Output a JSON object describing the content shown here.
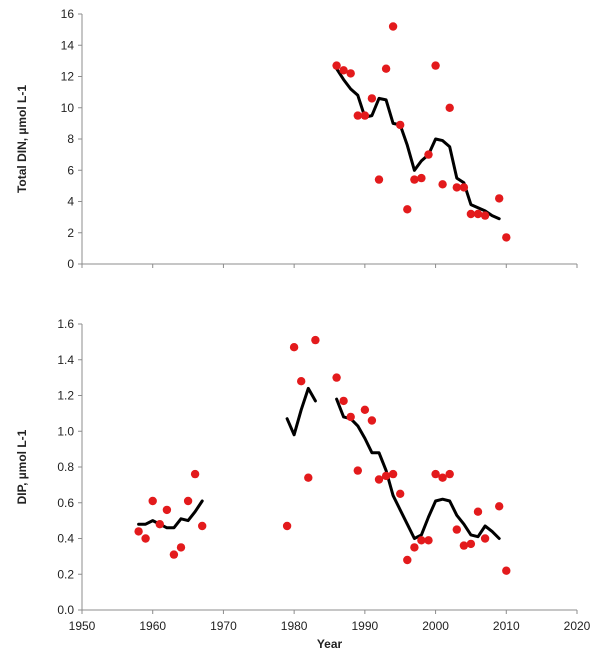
{
  "chart_data": [
    {
      "type": "scatter",
      "ylabel": "Total DIN, µmol L-1",
      "xlabel": "",
      "xlim": [
        1950,
        2020
      ],
      "ylim": [
        0,
        16
      ],
      "y_ticks": [
        "0",
        "2",
        "4",
        "6",
        "8",
        "10",
        "12",
        "14",
        "16"
      ],
      "grid": false,
      "point_color": "#e31a1c",
      "line_color": "#000000",
      "series": [
        {
          "kind": "points",
          "x": [
            1986,
            1987,
            1988,
            1989,
            1990,
            1991,
            1992,
            1993,
            1994,
            1995,
            1996,
            1997,
            1998,
            1999,
            2000,
            2001,
            2002,
            2003,
            2004,
            2005,
            2006,
            2007,
            2009,
            2010
          ],
          "values": [
            12.7,
            12.4,
            12.2,
            9.5,
            9.5,
            10.6,
            5.4,
            12.5,
            15.2,
            8.9,
            3.5,
            5.4,
            5.5,
            7.0,
            12.7,
            5.1,
            10.0,
            4.9,
            4.9,
            3.2,
            3.2,
            3.1,
            4.2,
            1.7
          ]
        },
        {
          "kind": "line",
          "segments": [
            {
              "x": [
                1986,
                1987,
                1988,
                1989,
                1990,
                1991,
                1992,
                1993,
                1994,
                1995,
                1996,
                1997,
                1998,
                1999,
                2000,
                2001,
                2002,
                2003,
                2004,
                2005,
                2006,
                2007,
                2008,
                2009
              ],
              "values": [
                12.5,
                11.8,
                11.2,
                10.8,
                9.4,
                9.5,
                10.6,
                10.5,
                9.0,
                8.9,
                7.6,
                6.0,
                6.6,
                7.0,
                8.0,
                7.9,
                7.5,
                5.5,
                5.2,
                3.8,
                3.6,
                3.4,
                3.1,
                2.9
              ]
            }
          ]
        }
      ]
    },
    {
      "type": "scatter",
      "ylabel": "DIP, µmol L-1",
      "xlabel": "Year",
      "xlim": [
        1950,
        2020
      ],
      "ylim": [
        0,
        1.6
      ],
      "x_ticks": [
        "1950",
        "1960",
        "1970",
        "1980",
        "1990",
        "2000",
        "2010",
        "2020"
      ],
      "y_ticks": [
        "0.0",
        "0.2",
        "0.4",
        "0.6",
        "0.8",
        "1.0",
        "1.2",
        "1.4",
        "1.6"
      ],
      "grid": false,
      "point_color": "#e31a1c",
      "line_color": "#000000",
      "series": [
        {
          "kind": "points",
          "x": [
            1958,
            1959,
            1960,
            1961,
            1962,
            1963,
            1964,
            1965,
            1966,
            1967,
            1979,
            1980,
            1981,
            1982,
            1983,
            1986,
            1987,
            1988,
            1989,
            1990,
            1991,
            1992,
            1993,
            1994,
            1995,
            1996,
            1997,
            1998,
            1999,
            2000,
            2001,
            2002,
            2003,
            2004,
            2005,
            2006,
            2007,
            2009,
            2010
          ],
          "values": [
            0.44,
            0.4,
            0.61,
            0.48,
            0.56,
            0.31,
            0.35,
            0.61,
            0.76,
            0.47,
            0.47,
            1.47,
            1.28,
            0.74,
            1.51,
            1.3,
            1.17,
            1.08,
            0.78,
            1.12,
            1.06,
            0.73,
            0.75,
            0.76,
            0.65,
            0.28,
            0.35,
            0.39,
            0.39,
            0.76,
            0.74,
            0.76,
            0.45,
            0.36,
            0.37,
            0.55,
            0.4,
            0.58,
            0.22
          ]
        },
        {
          "kind": "line",
          "segments": [
            {
              "x": [
                1958,
                1959,
                1960,
                1961,
                1962,
                1963,
                1964,
                1965,
                1966,
                1967
              ],
              "values": [
                0.48,
                0.48,
                0.5,
                0.48,
                0.46,
                0.46,
                0.51,
                0.5,
                0.55,
                0.61
              ]
            },
            {
              "x": [
                1979,
                1980,
                1981,
                1982,
                1983
              ],
              "values": [
                1.07,
                0.98,
                1.12,
                1.24,
                1.17
              ]
            },
            {
              "x": [
                1986,
                1987,
                1988,
                1989,
                1990,
                1991,
                1992,
                1993,
                1994,
                1995,
                1996,
                1997,
                1998,
                1999,
                2000,
                2001,
                2002,
                2003,
                2004,
                2005,
                2006,
                2007,
                2008,
                2009
              ],
              "values": [
                1.18,
                1.08,
                1.07,
                1.03,
                0.96,
                0.88,
                0.88,
                0.78,
                0.64,
                0.56,
                0.48,
                0.4,
                0.42,
                0.52,
                0.61,
                0.62,
                0.61,
                0.53,
                0.48,
                0.42,
                0.41,
                0.47,
                0.44,
                0.4
              ]
            }
          ]
        }
      ]
    }
  ]
}
